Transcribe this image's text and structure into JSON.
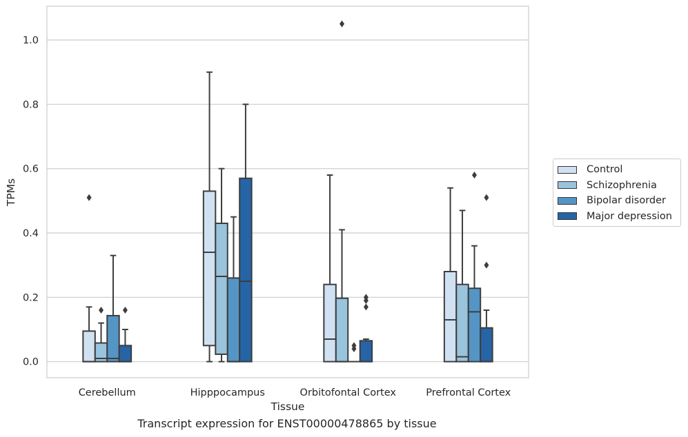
{
  "caption": "Transcript expression for ENST00000478865 by tissue",
  "chart_data": {
    "type": "box",
    "title": "",
    "xlabel": "Tissue",
    "ylabel": "TPMs",
    "ylim": [
      -0.05,
      1.105
    ],
    "yticks": [
      "0.0",
      "0.2",
      "0.4",
      "0.6",
      "0.8",
      "1.0"
    ],
    "grid": true,
    "legend_position": "right",
    "categories": [
      "Cerebellum",
      "Hipppocampus",
      "Orbitofontal Cortex",
      "Prefrontal Cortex"
    ],
    "series": [
      {
        "name": "Control",
        "color": "#d0e1f2",
        "boxes": [
          {
            "whisker_low": 0,
            "q1": 0,
            "median": 0,
            "q3": 0.095,
            "whisker_high": 0.17,
            "outliers": [
              0.51
            ]
          },
          {
            "whisker_low": 0,
            "q1": 0.05,
            "median": 0.34,
            "q3": 0.53,
            "whisker_high": 0.9,
            "outliers": []
          },
          {
            "whisker_low": 0,
            "q1": 0,
            "median": 0.07,
            "q3": 0.24,
            "whisker_high": 0.58,
            "outliers": []
          },
          {
            "whisker_low": 0,
            "q1": 0,
            "median": 0.13,
            "q3": 0.28,
            "whisker_high": 0.54,
            "outliers": []
          }
        ]
      },
      {
        "name": "Schizophrenia",
        "color": "#9ac3dc",
        "boxes": [
          {
            "whisker_low": 0,
            "q1": 0,
            "median": 0.01,
            "q3": 0.058,
            "whisker_high": 0.12,
            "outliers": [
              0.16
            ]
          },
          {
            "whisker_low": 0,
            "q1": 0.023,
            "median": 0.265,
            "q3": 0.43,
            "whisker_high": 0.6,
            "outliers": []
          },
          {
            "whisker_low": 0,
            "q1": 0,
            "median": 0,
            "q3": 0.197,
            "whisker_high": 0.41,
            "outliers": [
              1.05
            ]
          },
          {
            "whisker_low": 0,
            "q1": 0,
            "median": 0.015,
            "q3": 0.24,
            "whisker_high": 0.47,
            "outliers": []
          }
        ]
      },
      {
        "name": "Bipolar disorder",
        "color": "#5495c5",
        "boxes": [
          {
            "whisker_low": 0,
            "q1": 0,
            "median": 0.01,
            "q3": 0.143,
            "whisker_high": 0.33,
            "outliers": []
          },
          {
            "whisker_low": 0,
            "q1": 0,
            "median": 0,
            "q3": 0.26,
            "whisker_high": 0.45,
            "outliers": []
          },
          {
            "whisker_low": 0,
            "q1": 0,
            "median": 0,
            "q3": 0,
            "whisker_high": 0,
            "outliers": [
              0.04,
              0.05
            ]
          },
          {
            "whisker_low": 0,
            "q1": 0,
            "median": 0.155,
            "q3": 0.228,
            "whisker_high": 0.36,
            "outliers": [
              0.58
            ]
          }
        ]
      },
      {
        "name": "Major depression",
        "color": "#2664a6",
        "boxes": [
          {
            "whisker_low": 0,
            "q1": 0,
            "median": 0,
            "q3": 0.05,
            "whisker_high": 0.1,
            "outliers": [
              0.16
            ]
          },
          {
            "whisker_low": 0,
            "q1": 0,
            "median": 0.25,
            "q3": 0.57,
            "whisker_high": 0.8,
            "outliers": []
          },
          {
            "whisker_low": 0,
            "q1": 0,
            "median": 0,
            "q3": 0.065,
            "whisker_high": 0.07,
            "outliers": [
              0.17,
              0.19,
              0.2
            ]
          },
          {
            "whisker_low": 0,
            "q1": 0,
            "median": 0,
            "q3": 0.105,
            "whisker_high": 0.16,
            "outliers": [
              0.3,
              0.51
            ]
          }
        ]
      }
    ]
  }
}
